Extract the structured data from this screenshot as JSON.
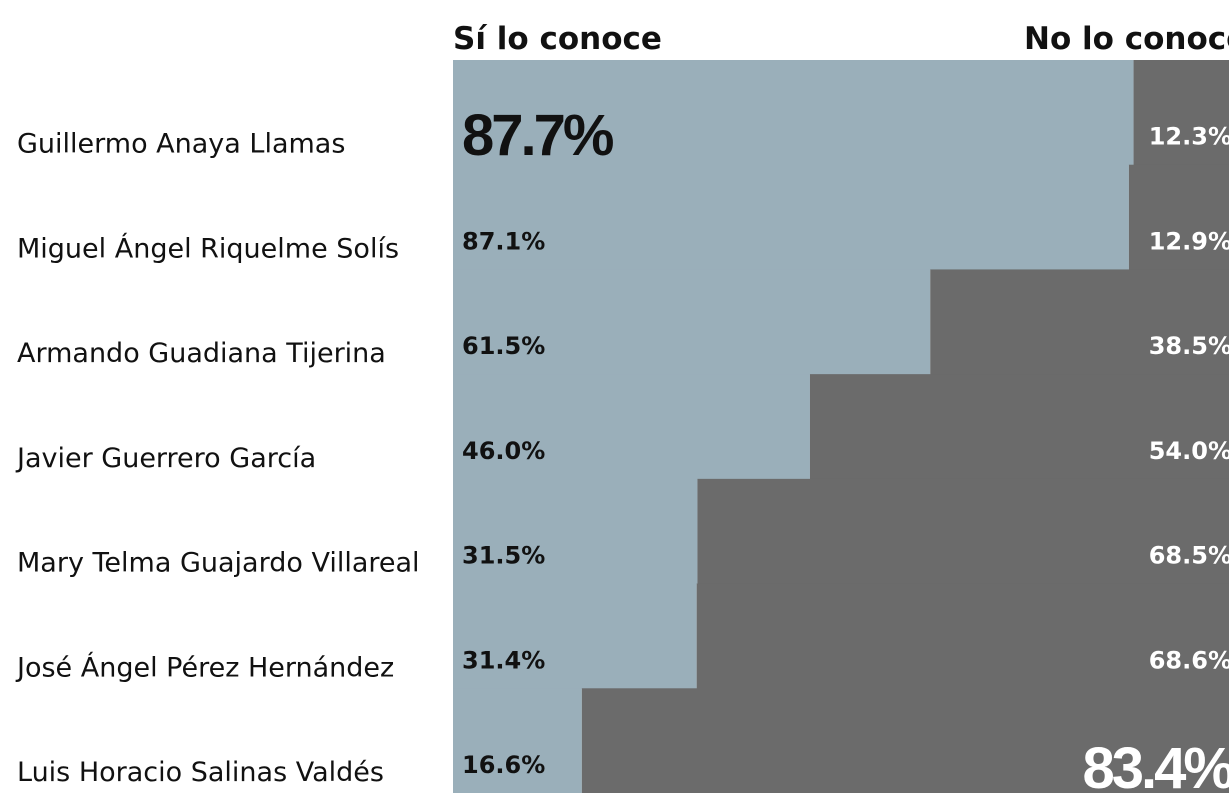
{
  "chart_data": {
    "type": "bar",
    "orientation": "horizontal",
    "stacked": true,
    "categories": [
      "Guillermo Anaya Llamas",
      "Miguel Ángel Riquelme Solís",
      "Armando Guadiana Tijerina",
      "Javier Guerrero García",
      "Mary Telma Guajardo Villareal",
      "José Ángel Pérez Hernández",
      "Luis Horacio Salinas Valdés"
    ],
    "series": [
      {
        "name": "Sí lo conoce",
        "color": "#9aafba",
        "values": [
          87.7,
          87.1,
          61.5,
          46.0,
          31.5,
          31.4,
          16.6
        ],
        "value_labels": [
          "87.7%",
          "87.1%",
          "61.5%",
          "46.0%",
          "31.5%",
          "31.4%",
          "16.6%"
        ]
      },
      {
        "name": "No lo conoce",
        "color": "#6b6b6b",
        "values": [
          12.3,
          12.9,
          38.5,
          54.0,
          68.5,
          68.6,
          83.4
        ],
        "value_labels": [
          "12.3%",
          "12.9%",
          "38.5%",
          "54.0%",
          "68.5%",
          "68.6%",
          "83.4%"
        ]
      }
    ],
    "xlim": [
      0,
      100
    ]
  }
}
